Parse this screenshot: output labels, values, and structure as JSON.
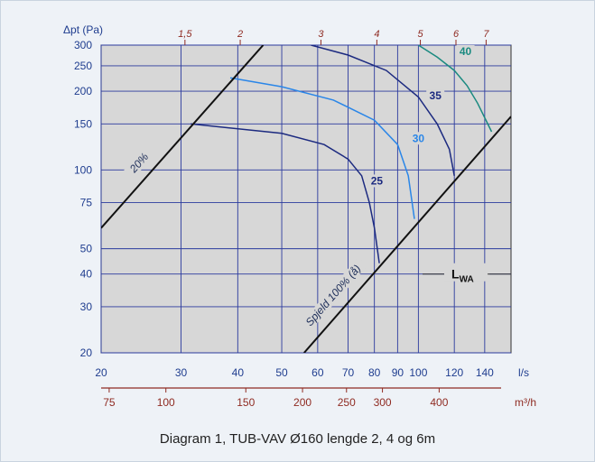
{
  "caption": "Diagram 1, TUB-VAV Ø160 lengde 2, 4 og 6m",
  "chart_data": {
    "type": "line",
    "x_scale": "log",
    "y_scale": "log",
    "xlabel": "l/s",
    "ylabel": "Δpt (Pa)",
    "xlabel2": "m³/h",
    "xlim": [
      20,
      160
    ],
    "ylim": [
      20,
      300
    ],
    "grid": true,
    "x_ticks": [
      20,
      30,
      40,
      50,
      60,
      70,
      80,
      90,
      100,
      120,
      140
    ],
    "y_ticks": [
      20,
      30,
      40,
      50,
      75,
      100,
      150,
      200,
      250,
      300
    ],
    "x2_ticks": [
      75,
      100,
      150,
      200,
      250,
      300,
      400
    ],
    "velocity_ticks": [
      "1,5",
      "2",
      "3",
      "4",
      "5",
      "6",
      "7"
    ],
    "series": [
      {
        "name": "25",
        "color": "#1c2a80",
        "x": [
          31.5,
          50,
          62,
          70,
          75,
          78,
          80,
          82
        ],
        "y": [
          150,
          138,
          125,
          110,
          95,
          75,
          60,
          44
        ]
      },
      {
        "name": "30",
        "color": "#2a86e8",
        "x": [
          38.5,
          50,
          65,
          80,
          90,
          95,
          98
        ],
        "y": [
          225,
          208,
          185,
          155,
          125,
          95,
          65
        ]
      },
      {
        "name": "35",
        "color": "#1c2a80",
        "x": [
          58,
          70,
          85,
          100,
          110,
          117,
          120
        ],
        "y": [
          300,
          275,
          240,
          190,
          150,
          120,
          95
        ]
      },
      {
        "name": "40",
        "color": "#1a8a80",
        "x": [
          100,
          110,
          120,
          128,
          135,
          145
        ],
        "y": [
          300,
          270,
          240,
          210,
          180,
          140
        ]
      }
    ],
    "reference_lines": [
      {
        "name": "20%",
        "color": "#111111",
        "x": [
          20,
          45.5
        ],
        "y": [
          60,
          300
        ]
      },
      {
        "name": "Spjeld 100% (å)",
        "color": "#111111",
        "x": [
          56,
          160
        ],
        "y": [
          20,
          160
        ]
      }
    ],
    "legend_label": {
      "main": "L",
      "sub": "WA"
    },
    "curve_labels": [
      "25",
      "30",
      "35",
      "40"
    ]
  }
}
